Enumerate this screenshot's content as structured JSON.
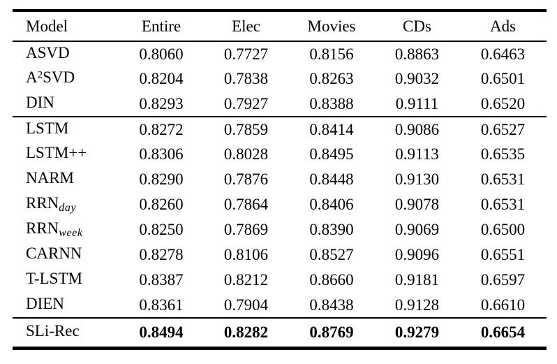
{
  "colors": {
    "text": "#000000",
    "background": "#ffffff",
    "rule": "#000000"
  },
  "table": {
    "columns": [
      "Model",
      "Entire",
      "Elec",
      "Movies",
      "CDs",
      "Ads"
    ],
    "groups": [
      {
        "rows": [
          {
            "model": {
              "pre": "ASVD",
              "sup": "",
              "sub": "",
              "post": ""
            },
            "values": [
              "0.8060",
              "0.7727",
              "0.8156",
              "0.8863",
              "0.6463"
            ]
          },
          {
            "model": {
              "pre": "A",
              "sup": "2",
              "sub": "",
              "post": "SVD"
            },
            "values": [
              "0.8204",
              "0.7838",
              "0.8263",
              "0.9032",
              "0.6501"
            ]
          },
          {
            "model": {
              "pre": "DIN",
              "sup": "",
              "sub": "",
              "post": ""
            },
            "values": [
              "0.8293",
              "0.7927",
              "0.8388",
              "0.9111",
              "0.6520"
            ]
          }
        ]
      },
      {
        "rows": [
          {
            "model": {
              "pre": "LSTM",
              "sup": "",
              "sub": "",
              "post": ""
            },
            "values": [
              "0.8272",
              "0.7859",
              "0.8414",
              "0.9086",
              "0.6527"
            ]
          },
          {
            "model": {
              "pre": "LSTM++",
              "sup": "",
              "sub": "",
              "post": ""
            },
            "values": [
              "0.8306",
              "0.8028",
              "0.8495",
              "0.9113",
              "0.6535"
            ]
          },
          {
            "model": {
              "pre": "NARM",
              "sup": "",
              "sub": "",
              "post": ""
            },
            "values": [
              "0.8290",
              "0.7876",
              "0.8448",
              "0.9130",
              "0.6531"
            ]
          },
          {
            "model": {
              "pre": "RRN",
              "sup": "",
              "sub": "day",
              "post": ""
            },
            "values": [
              "0.8260",
              "0.7864",
              "0.8406",
              "0.9078",
              "0.6531"
            ]
          },
          {
            "model": {
              "pre": "RRN",
              "sup": "",
              "sub": "week",
              "post": ""
            },
            "values": [
              "0.8250",
              "0.7869",
              "0.8390",
              "0.9069",
              "0.6500"
            ]
          },
          {
            "model": {
              "pre": "CARNN",
              "sup": "",
              "sub": "",
              "post": ""
            },
            "values": [
              "0.8278",
              "0.8106",
              "0.8527",
              "0.9096",
              "0.6551"
            ]
          },
          {
            "model": {
              "pre": "T-LSTM",
              "sup": "",
              "sub": "",
              "post": ""
            },
            "values": [
              "0.8387",
              "0.8212",
              "0.8660",
              "0.9181",
              "0.6597"
            ]
          },
          {
            "model": {
              "pre": "DIEN",
              "sup": "",
              "sub": "",
              "post": ""
            },
            "values": [
              "0.8361",
              "0.7904",
              "0.8438",
              "0.9128",
              "0.6610"
            ]
          }
        ]
      },
      {
        "rows": [
          {
            "model": {
              "pre": "SLi-Rec",
              "sup": "",
              "sub": "",
              "post": ""
            },
            "values": [
              "0.8494",
              "0.8282",
              "0.8769",
              "0.9279",
              "0.6654"
            ]
          }
        ]
      }
    ]
  }
}
